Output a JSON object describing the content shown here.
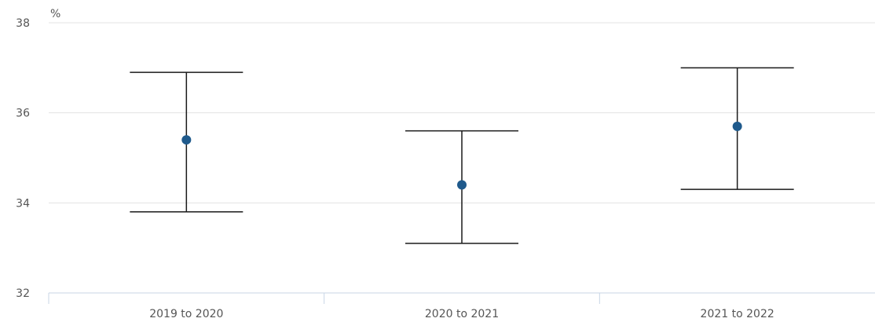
{
  "chart_data": {
    "type": "scatter",
    "title": "",
    "xlabel": "",
    "ylabel": "",
    "y_unit_label": "%",
    "categories": [
      "2019 to 2020",
      "2020 to 2021",
      "2021 to 2022"
    ],
    "series": [
      {
        "values": [
          35.4,
          34.4,
          35.7
        ],
        "lower": [
          33.8,
          33.1,
          34.3
        ],
        "upper": [
          36.9,
          35.6,
          37.0
        ]
      }
    ],
    "ylim": [
      32,
      38
    ],
    "yticks": [
      32,
      34,
      36,
      38
    ],
    "grid": true,
    "legend": "none",
    "colors": {
      "point": "#1f5a8c",
      "error_bar": "#1a1a1a",
      "grid": "#e3e3e3",
      "axis": "#c8d6e6"
    }
  }
}
